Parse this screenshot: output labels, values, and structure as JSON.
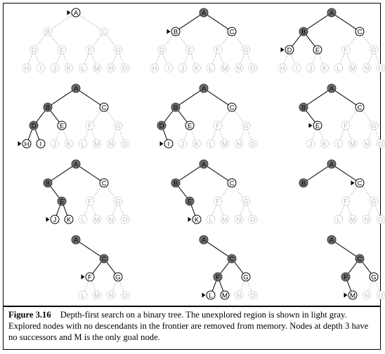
{
  "tree": {
    "nodes": [
      "A",
      "B",
      "C",
      "D",
      "E",
      "F",
      "G",
      "H",
      "I",
      "J",
      "K",
      "L",
      "M",
      "N",
      "O"
    ],
    "depth_count": 4
  },
  "steps": [
    {
      "frontier": [
        "A"
      ],
      "expanded": [],
      "removed": [],
      "pointer": "A"
    },
    {
      "frontier": [
        "B",
        "C"
      ],
      "expanded": [
        "A"
      ],
      "removed": [],
      "pointer": "B"
    },
    {
      "frontier": [
        "D",
        "E",
        "C"
      ],
      "expanded": [
        "A",
        "B"
      ],
      "removed": [],
      "pointer": "D"
    },
    {
      "frontier": [
        "H",
        "I",
        "E",
        "C"
      ],
      "expanded": [
        "A",
        "B",
        "D"
      ],
      "removed": [],
      "pointer": "H"
    },
    {
      "frontier": [
        "I",
        "E",
        "C"
      ],
      "expanded": [
        "A",
        "B",
        "D"
      ],
      "removed": [
        "H"
      ],
      "pointer": "I"
    },
    {
      "frontier": [
        "E",
        "C"
      ],
      "expanded": [
        "A",
        "B"
      ],
      "removed": [
        "D",
        "H",
        "I"
      ],
      "pointer": "E"
    },
    {
      "frontier": [
        "J",
        "K",
        "C"
      ],
      "expanded": [
        "A",
        "B",
        "E"
      ],
      "removed": [
        "D",
        "H",
        "I"
      ],
      "pointer": "J"
    },
    {
      "frontier": [
        "K",
        "C"
      ],
      "expanded": [
        "A",
        "B",
        "E"
      ],
      "removed": [
        "D",
        "H",
        "I",
        "J"
      ],
      "pointer": "K"
    },
    {
      "frontier": [
        "C"
      ],
      "expanded": [
        "A",
        "B"
      ],
      "removed": [
        "D",
        "E",
        "H",
        "I",
        "J",
        "K"
      ],
      "pointer": "C"
    },
    {
      "frontier": [
        "F",
        "G"
      ],
      "expanded": [
        "A",
        "C"
      ],
      "removed": [
        "B",
        "D",
        "E",
        "H",
        "I",
        "J",
        "K"
      ],
      "pointer": "F"
    },
    {
      "frontier": [
        "L",
        "M",
        "G"
      ],
      "expanded": [
        "A",
        "C",
        "F"
      ],
      "removed": [
        "B",
        "D",
        "E",
        "H",
        "I",
        "J",
        "K"
      ],
      "pointer": "L"
    },
    {
      "frontier": [
        "M",
        "G"
      ],
      "expanded": [
        "A",
        "C",
        "F"
      ],
      "removed": [
        "B",
        "D",
        "E",
        "H",
        "I",
        "J",
        "K",
        "L"
      ],
      "pointer": "M"
    }
  ],
  "colors": {
    "explored": "#6e6e6e",
    "frontier": "#000000",
    "unexplored": "#bbbbbb",
    "background": "#ffffff"
  },
  "caption": {
    "label": "Figure 3.16",
    "text": "Depth-first search on a binary tree. The unexplored region is shown in light gray. Explored nodes with no descendants in the frontier are removed from memory. Nodes at depth 3 have no successors and M is the only goal node."
  }
}
